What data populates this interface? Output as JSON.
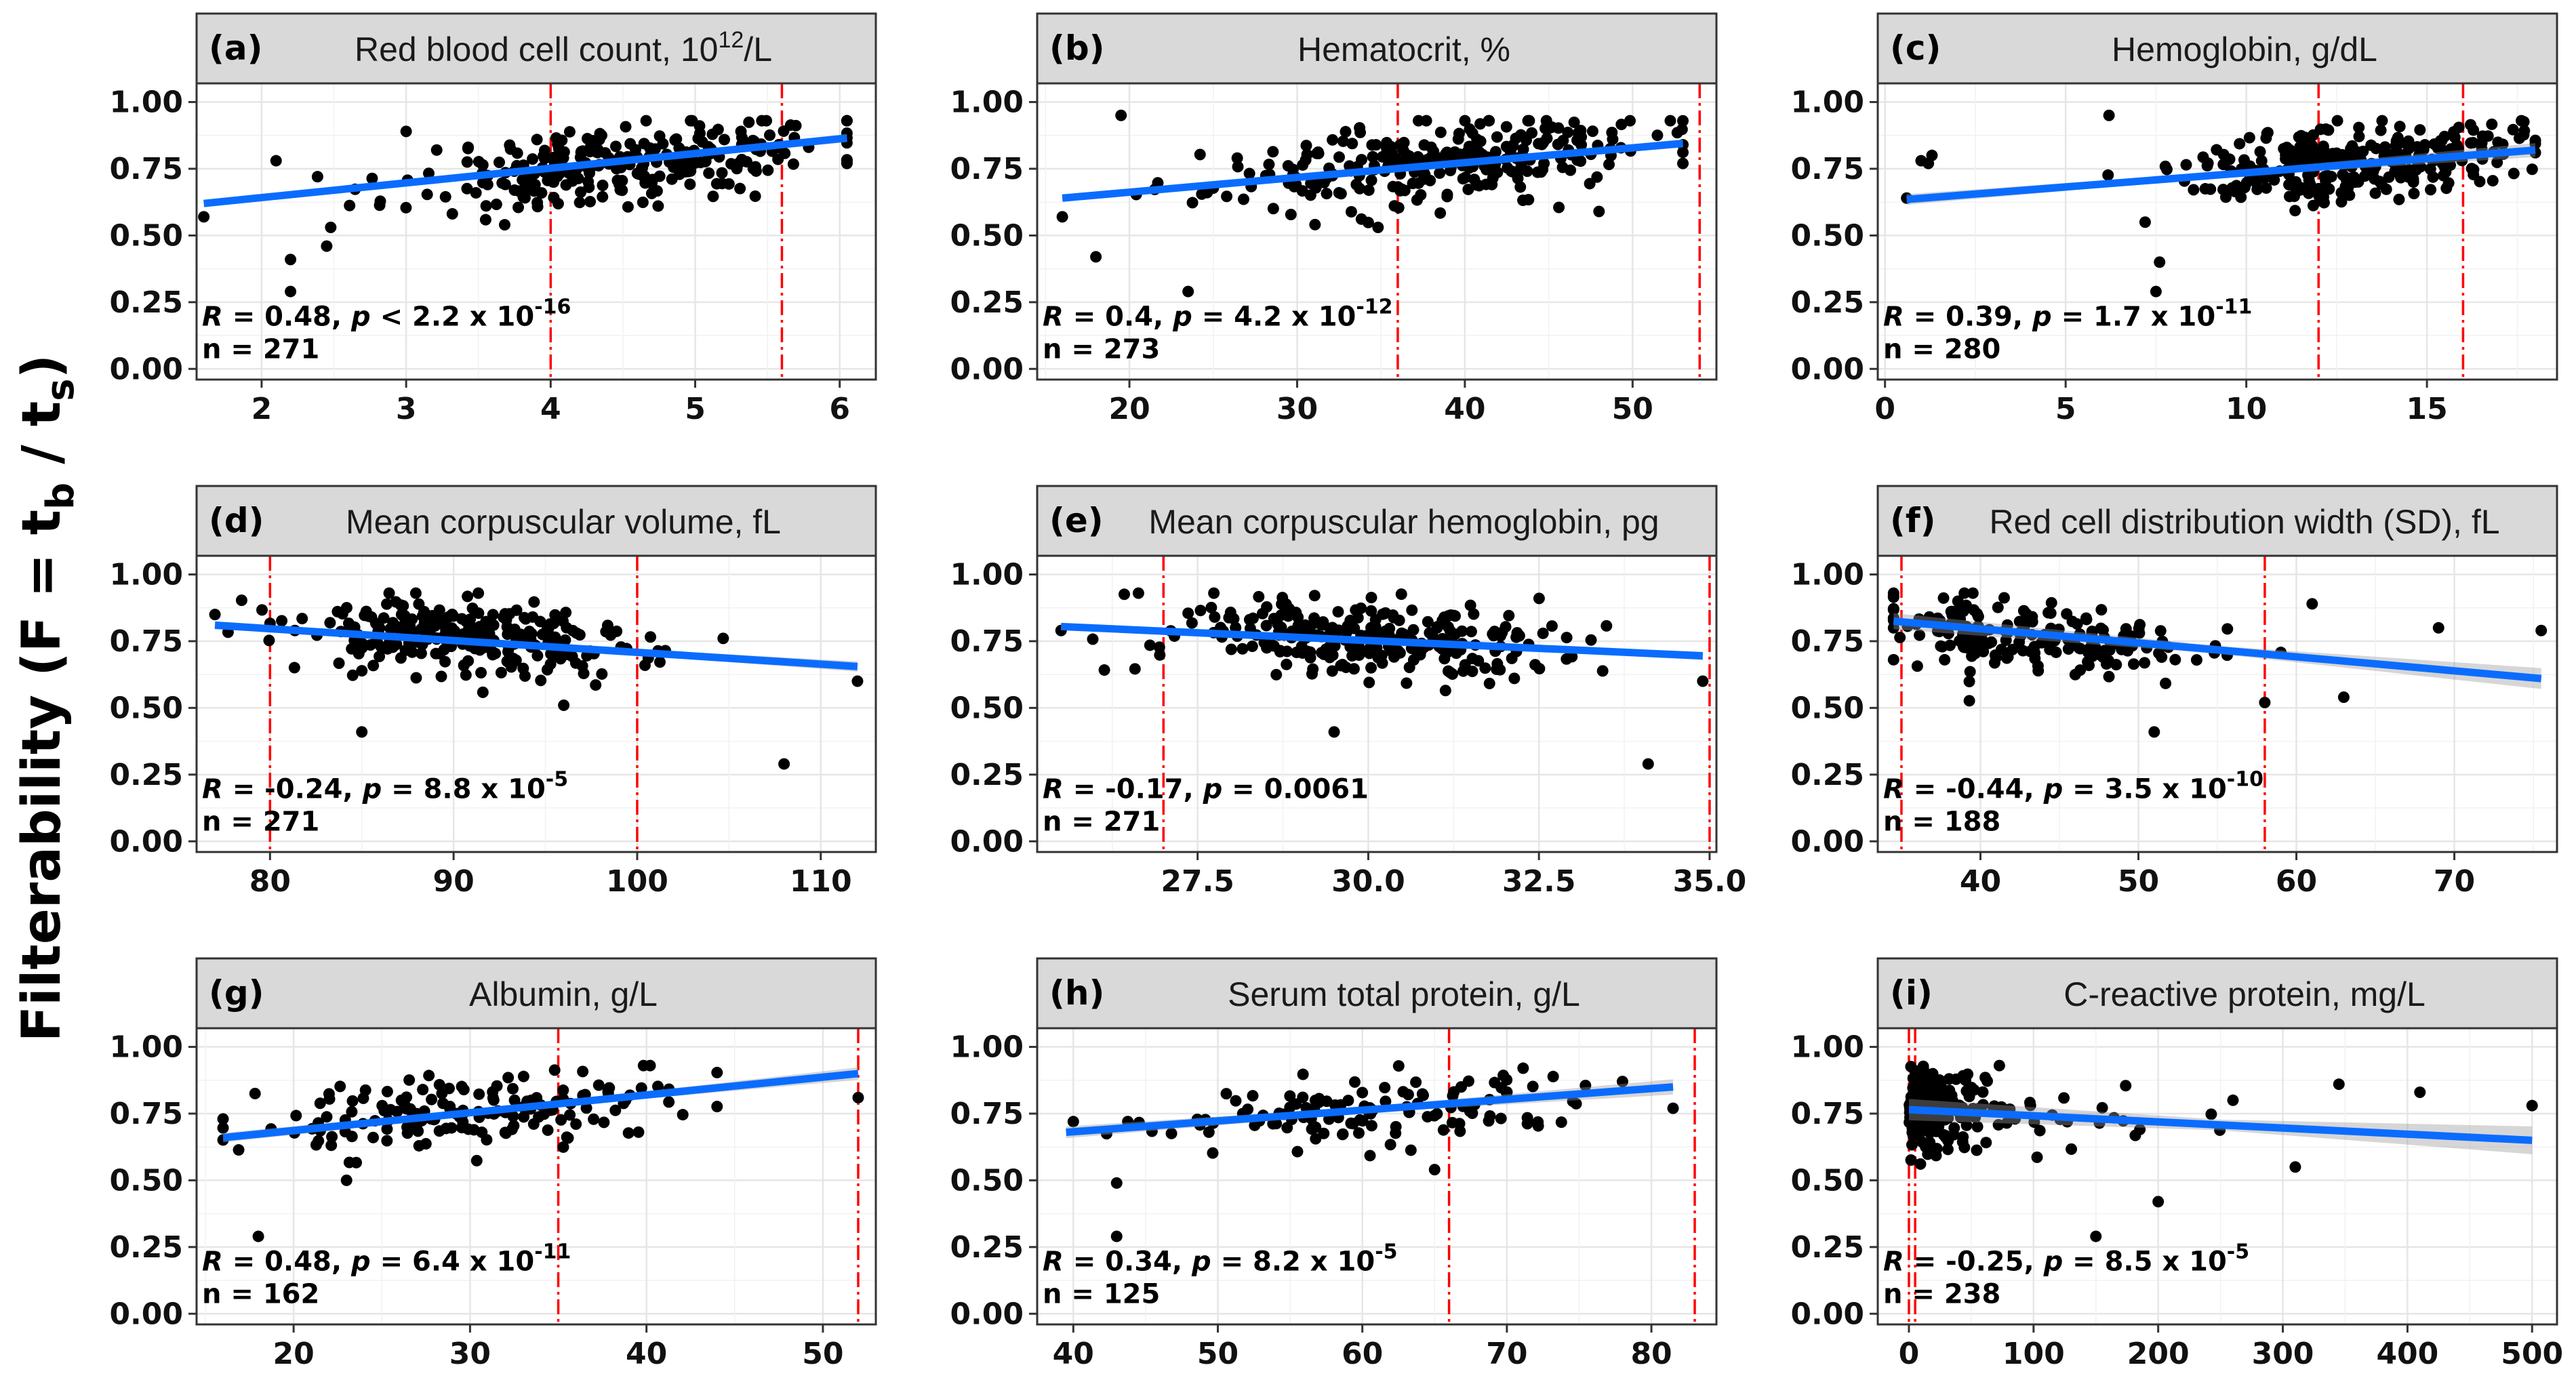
{
  "y_axis_label": {
    "main": "Filterability (F = t",
    "sub_b": "b",
    "mid": " / t",
    "sub_s": "s",
    "end": ")"
  },
  "chart_data": [
    {
      "id": "a",
      "type": "scatter",
      "tag": "(a)",
      "title": "Red blood cell count, 10",
      "title_sup": "12",
      "title_end": "/L",
      "xlim": [
        1.55,
        6.25
      ],
      "ylim": [
        -0.04,
        1.07
      ],
      "xticks": [
        2,
        3,
        4,
        5,
        6
      ],
      "xtick_labels": [
        "2",
        "3",
        "4",
        "5",
        "6"
      ],
      "yticks": [
        0,
        0.25,
        0.5,
        0.75,
        1
      ],
      "ytick_labels": [
        "0.00",
        "0.25",
        "0.50",
        "0.75",
        "1.00"
      ],
      "ref_lines": [
        4.0,
        5.6
      ],
      "fit": {
        "x": [
          1.6,
          6.05
        ],
        "y": [
          0.62,
          0.865
        ],
        "band": 0.012
      },
      "stat_line1_pre": "R",
      "stat_line1": " = 0.48, ",
      "stat_p": "p",
      "stat_line1_rest": " < 2.2 x 10",
      "stat_sup": "-16",
      "stat_n": "n = 271",
      "n": 271,
      "cloud": {
        "xmin": 1.6,
        "xmax": 6.05,
        "xc": 4.5,
        "xsd": 0.75,
        "yc": 0.77,
        "ysd": 0.075,
        "slope": 0.055,
        "seed": 11
      },
      "extra_points": [
        [
          2.2,
          0.41
        ],
        [
          2.2,
          0.29
        ],
        [
          2.45,
          0.46
        ],
        [
          1.6,
          0.57
        ],
        [
          2.1,
          0.78
        ],
        [
          3.0,
          0.89
        ],
        [
          6.05,
          0.77
        ]
      ]
    },
    {
      "id": "b",
      "type": "scatter",
      "tag": "(b)",
      "title": "Hematocrit, %",
      "title_sup": "",
      "title_end": "",
      "xlim": [
        14.5,
        55.0
      ],
      "ylim": [
        -0.04,
        1.07
      ],
      "xticks": [
        20,
        30,
        40,
        50
      ],
      "xtick_labels": [
        "20",
        "30",
        "40",
        "50"
      ],
      "yticks": [
        0,
        0.25,
        0.5,
        0.75,
        1
      ],
      "ytick_labels": [
        "0.00",
        "0.25",
        "0.50",
        "0.75",
        "1.00"
      ],
      "ref_lines": [
        36,
        54
      ],
      "fit": {
        "x": [
          16,
          53
        ],
        "y": [
          0.64,
          0.845
        ],
        "band": 0.012
      },
      "stat_line1_pre": "R",
      "stat_line1": " = 0.4, ",
      "stat_p": "p",
      "stat_line1_rest": " = 4.2 x 10",
      "stat_sup": "-12",
      "stat_n": "n = 273",
      "n": 273,
      "cloud": {
        "xmin": 16,
        "xmax": 53,
        "xc": 38,
        "xsd": 6.5,
        "yc": 0.77,
        "ysd": 0.075,
        "slope": 0.0055,
        "seed": 23
      },
      "extra_points": [
        [
          18,
          0.42
        ],
        [
          19.5,
          0.95
        ],
        [
          23.5,
          0.29
        ],
        [
          16,
          0.57
        ],
        [
          48,
          0.59
        ],
        [
          53,
          0.77
        ]
      ]
    },
    {
      "id": "c",
      "type": "scatter",
      "tag": "(c)",
      "title": "Hemoglobin, g/dL",
      "title_sup": "",
      "title_end": "",
      "xlim": [
        -0.2,
        18.6
      ],
      "ylim": [
        -0.04,
        1.07
      ],
      "xticks": [
        0,
        5,
        10,
        15
      ],
      "xtick_labels": [
        "0",
        "5",
        "10",
        "15"
      ],
      "yticks": [
        0,
        0.25,
        0.5,
        0.75,
        1
      ],
      "ytick_labels": [
        "0.00",
        "0.25",
        "0.50",
        "0.75",
        "1.00"
      ],
      "ref_lines": [
        12,
        16
      ],
      "fit": {
        "x": [
          0.6,
          18
        ],
        "y": [
          0.635,
          0.82
        ],
        "band": 0.02
      },
      "stat_line1_pre": "R",
      "stat_line1": " = 0.39, ",
      "stat_p": "p",
      "stat_line1_rest": " = 1.7 x 10",
      "stat_sup": "-11",
      "stat_n": "n = 280",
      "n": 280,
      "cloud": {
        "xmin": 0.6,
        "xmax": 18,
        "xc": 13,
        "xsd": 2.2,
        "yc": 0.78,
        "ysd": 0.07,
        "slope": 0.012,
        "seed": 37
      },
      "extra_points": [
        [
          0.6,
          0.64
        ],
        [
          1.0,
          0.78
        ],
        [
          1.3,
          0.8
        ],
        [
          1.2,
          0.77
        ],
        [
          6.2,
          0.95
        ],
        [
          7.5,
          0.29
        ],
        [
          7.6,
          0.4
        ],
        [
          7.2,
          0.55
        ]
      ]
    },
    {
      "id": "d",
      "type": "scatter",
      "tag": "(d)",
      "title": "Mean corpuscular volume, fL",
      "title_sup": "",
      "title_end": "",
      "xlim": [
        76,
        113
      ],
      "ylim": [
        -0.04,
        1.07
      ],
      "xticks": [
        80,
        90,
        100,
        110
      ],
      "xtick_labels": [
        "80",
        "90",
        "100",
        "110"
      ],
      "yticks": [
        0,
        0.25,
        0.5,
        0.75,
        1
      ],
      "ytick_labels": [
        "0.00",
        "0.25",
        "0.50",
        "0.75",
        "1.00"
      ],
      "ref_lines": [
        80,
        100
      ],
      "fit": {
        "x": [
          77,
          112
        ],
        "y": [
          0.81,
          0.655
        ],
        "band": 0.015
      },
      "stat_line1_pre": "R",
      "stat_line1": " = -0.24, ",
      "stat_p": "p",
      "stat_line1_rest": " = 8.8 x 10",
      "stat_sup": "-5",
      "stat_n": "n = 271",
      "n": 271,
      "cloud": {
        "xmin": 77,
        "xmax": 112,
        "xc": 91,
        "xsd": 5,
        "yc": 0.76,
        "ysd": 0.07,
        "slope": -0.0045,
        "seed": 53
      },
      "extra_points": [
        [
          85,
          0.41
        ],
        [
          108,
          0.29
        ],
        [
          112,
          0.6
        ],
        [
          77,
          0.85
        ],
        [
          96,
          0.51
        ]
      ]
    },
    {
      "id": "e",
      "type": "scatter",
      "tag": "(e)",
      "title": "Mean corpuscular hemoglobin, pg",
      "title_sup": "",
      "title_end": "",
      "xlim": [
        25.15,
        35.1
      ],
      "ylim": [
        -0.04,
        1.07
      ],
      "xticks": [
        27.5,
        30,
        32.5,
        35
      ],
      "xtick_labels": [
        "27.5",
        "30.0",
        "32.5",
        "35.0"
      ],
      "yticks": [
        0,
        0.25,
        0.5,
        0.75,
        1
      ],
      "ytick_labels": [
        "0.00",
        "0.25",
        "0.50",
        "0.75",
        "1.00"
      ],
      "ref_lines": [
        27,
        35
      ],
      "fit": {
        "x": [
          25.5,
          34.9
        ],
        "y": [
          0.805,
          0.695
        ],
        "band": 0.012
      },
      "stat_line1_pre": "R",
      "stat_line1": " = -0.17, ",
      "stat_p": "p",
      "stat_line1_rest": " = 0.0061",
      "stat_sup": "",
      "stat_n": "n = 271",
      "n": 271,
      "cloud": {
        "xmin": 25.5,
        "xmax": 34.9,
        "xc": 30,
        "xsd": 1.6,
        "yc": 0.76,
        "ysd": 0.075,
        "slope": -0.012,
        "seed": 71
      },
      "extra_points": [
        [
          29.5,
          0.41
        ],
        [
          34.1,
          0.29
        ],
        [
          34.9,
          0.6
        ],
        [
          25.5,
          0.79
        ]
      ]
    },
    {
      "id": "f",
      "type": "scatter",
      "tag": "(f)",
      "title": "Red cell distribution width (SD), fL",
      "title_sup": "",
      "title_end": "",
      "xlim": [
        33.5,
        76.5
      ],
      "ylim": [
        -0.04,
        1.07
      ],
      "xticks": [
        40,
        50,
        60,
        70
      ],
      "xtick_labels": [
        "40",
        "50",
        "60",
        "70"
      ],
      "yticks": [
        0,
        0.25,
        0.5,
        0.75,
        1
      ],
      "ytick_labels": [
        "0.00",
        "0.25",
        "0.50",
        "0.75",
        "1.00"
      ],
      "ref_lines": [
        35,
        58
      ],
      "fit": {
        "x": [
          34.5,
          75.5
        ],
        "y": [
          0.825,
          0.61
        ],
        "band": 0.03
      },
      "stat_line1_pre": "R",
      "stat_line1": " = -0.44, ",
      "stat_p": "p",
      "stat_line1_rest": " = 3.5 x 10",
      "stat_sup": "-10",
      "stat_n": "n = 188",
      "n": 188,
      "cloud": {
        "xmin": 34.5,
        "xmax": 60,
        "xc": 44,
        "xsd": 5.5,
        "yc": 0.76,
        "ysd": 0.07,
        "slope": -0.004,
        "seed": 89
      },
      "extra_points": [
        [
          51,
          0.41
        ],
        [
          61,
          0.89
        ],
        [
          69,
          0.8
        ],
        [
          75.5,
          0.79
        ],
        [
          63,
          0.54
        ],
        [
          58,
          0.52
        ]
      ]
    },
    {
      "id": "g",
      "type": "scatter",
      "tag": "(g)",
      "title": "Albumin, g/L",
      "title_sup": "",
      "title_end": "",
      "xlim": [
        14.5,
        53
      ],
      "ylim": [
        -0.04,
        1.07
      ],
      "xticks": [
        20,
        30,
        40,
        50
      ],
      "xtick_labels": [
        "20",
        "30",
        "40",
        "50"
      ],
      "yticks": [
        0,
        0.25,
        0.5,
        0.75,
        1
      ],
      "ytick_labels": [
        "0.00",
        "0.25",
        "0.50",
        "0.75",
        "1.00"
      ],
      "ref_lines": [
        35,
        52
      ],
      "fit": {
        "x": [
          16,
          52
        ],
        "y": [
          0.66,
          0.9
        ],
        "band": 0.018
      },
      "stat_line1_pre": "R",
      "stat_line1": " = 0.48, ",
      "stat_p": "p",
      "stat_line1_rest": " = 6.4 x 10",
      "stat_sup": "-11",
      "stat_n": "n = 162",
      "n": 162,
      "cloud": {
        "xmin": 16,
        "xmax": 44,
        "xc": 30,
        "xsd": 6,
        "yc": 0.76,
        "ysd": 0.07,
        "slope": 0.006,
        "seed": 101
      },
      "extra_points": [
        [
          18,
          0.29
        ],
        [
          52,
          0.81
        ],
        [
          16,
          0.73
        ],
        [
          23,
          0.5
        ]
      ]
    },
    {
      "id": "h",
      "type": "scatter",
      "tag": "(h)",
      "title": "Serum total protein, g/L",
      "title_sup": "",
      "title_end": "",
      "xlim": [
        37.5,
        84.5
      ],
      "ylim": [
        -0.04,
        1.07
      ],
      "xticks": [
        40,
        50,
        60,
        70,
        80
      ],
      "xtick_labels": [
        "40",
        "50",
        "60",
        "70",
        "80"
      ],
      "yticks": [
        0,
        0.25,
        0.5,
        0.75,
        1
      ],
      "ytick_labels": [
        "0.00",
        "0.25",
        "0.50",
        "0.75",
        "1.00"
      ],
      "ref_lines": [
        66,
        83
      ],
      "fit": {
        "x": [
          39.5,
          81.5
        ],
        "y": [
          0.68,
          0.85
        ],
        "band": 0.022
      },
      "stat_line1_pre": "R",
      "stat_line1": " = 0.34, ",
      "stat_p": "p",
      "stat_line1_rest": " = 8.2 x 10",
      "stat_sup": "-5",
      "stat_n": "n = 125",
      "n": 125,
      "cloud": {
        "xmin": 39.5,
        "xmax": 78,
        "xc": 60,
        "xsd": 8,
        "yc": 0.76,
        "ysd": 0.065,
        "slope": 0.004,
        "seed": 131
      },
      "extra_points": [
        [
          43,
          0.29
        ],
        [
          43,
          0.49
        ],
        [
          81.5,
          0.77
        ],
        [
          65,
          0.54
        ],
        [
          40,
          0.72
        ]
      ]
    },
    {
      "id": "i",
      "type": "scatter",
      "tag": "(i)",
      "title": "C-reactive protein, mg/L",
      "title_sup": "",
      "title_end": "",
      "xlim": [
        -25,
        520
      ],
      "ylim": [
        -0.04,
        1.07
      ],
      "xticks": [
        0,
        100,
        200,
        300,
        400,
        500
      ],
      "xtick_labels": [
        "0",
        "100",
        "200",
        "300",
        "400",
        "500"
      ],
      "yticks": [
        0,
        0.25,
        0.5,
        0.75,
        1
      ],
      "ytick_labels": [
        "0.00",
        "0.25",
        "0.50",
        "0.75",
        "1.00"
      ],
      "ref_lines": [
        0,
        5
      ],
      "fit": {
        "x": [
          0,
          500
        ],
        "y": [
          0.765,
          0.65
        ],
        "band": 0.04
      },
      "stat_line1_pre": "R",
      "stat_line1": " = -0.25, ",
      "stat_p": "p",
      "stat_line1_rest": " = 8.5 x 10",
      "stat_sup": "-5",
      "stat_n": "n = 238",
      "n": 238,
      "cloud": {
        "xmin": 0,
        "xmax": 280,
        "xc": 10,
        "xsd": 70,
        "yc": 0.77,
        "ysd": 0.07,
        "slope": -0.0002,
        "seed": 151,
        "skew": true
      },
      "extra_points": [
        [
          150,
          0.29
        ],
        [
          200,
          0.42
        ],
        [
          345,
          0.86
        ],
        [
          410,
          0.83
        ],
        [
          500,
          0.78
        ],
        [
          310,
          0.55
        ],
        [
          260,
          0.8
        ]
      ]
    }
  ]
}
